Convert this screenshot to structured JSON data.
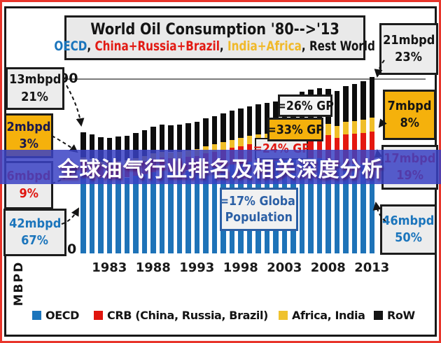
{
  "title_box": {
    "line1": "World Oil Consumption '80-->'13",
    "subtitle_segments": [
      {
        "text": "OECD",
        "color": "#1b75bc"
      },
      {
        "text": ", ",
        "color": "#141414"
      },
      {
        "text": "China+Russia+Brazil",
        "color": "#e21b14"
      },
      {
        "text": ", ",
        "color": "#141414"
      },
      {
        "text": "India+Africa",
        "color": "#f0b92a"
      },
      {
        "text": ", Rest World",
        "color": "#141414"
      }
    ]
  },
  "overlay_banner": {
    "text": "全球油气行业排名及相关深度分析",
    "bg": "rgba(58,66,196,0.85)",
    "text_color": "#ffffff"
  },
  "axis": {
    "y_top_label": "90",
    "y_zero_label": "0",
    "y_unit": "MBPD",
    "x_ticks": [
      "1983",
      "1988",
      "1993",
      "1998",
      "2003",
      "2008",
      "2013"
    ]
  },
  "callouts": {
    "left": [
      {
        "value": "13mbpd",
        "pct": "21%",
        "text_color": "#141414",
        "bg": "#ececec"
      },
      {
        "value": "2mbpd",
        "pct": "3%",
        "text_color": "#18184f",
        "bg": "#f5b10c"
      },
      {
        "value": "6mbpd",
        "pct": "9%",
        "text_color": "#e0150e",
        "bg": "#ececec"
      },
      {
        "value": "42mbpd",
        "pct": "67%",
        "text_color": "#1b75bc",
        "bg": "#ececec"
      }
    ],
    "right": [
      {
        "value": "21mbpd",
        "pct": "23%",
        "text_color": "#141414",
        "bg": "#ececec"
      },
      {
        "value": "7mbpd",
        "pct": "8%",
        "text_color": "#141414",
        "bg": "#f5b10c"
      },
      {
        "value": "17mbpd",
        "pct": "19%",
        "text_color": "#e0150e",
        "bg": "#ececec"
      },
      {
        "value": "46mbpd",
        "pct": "50%",
        "text_color": "#1b75bc",
        "bg": "#ececec"
      }
    ],
    "middle": [
      {
        "text": "=26% GP",
        "text_color": "#141414",
        "bg": "#f4f4f4"
      },
      {
        "text": "=33% GP",
        "text_color": "#141414",
        "bg": "#f5b10c"
      },
      {
        "text": "=24% GP",
        "text_color": "#e0150e",
        "bg": "#efefef"
      },
      {
        "line1": "=17% Global",
        "line2": "Population",
        "text_color": "#2b5fa5",
        "bg": "#f1f1f1",
        "border_color": "#2b5fa5"
      }
    ]
  },
  "legend": {
    "items": [
      {
        "label": "OECD",
        "color": "#1b75bc"
      },
      {
        "label": "CRB (China, Russia, Brazil)",
        "color": "#e0150e"
      },
      {
        "label": "Africa, India",
        "color": "#efc22e"
      },
      {
        "label": "RoW",
        "color": "#141414"
      }
    ]
  },
  "chart_data": {
    "type": "bar",
    "stacked": true,
    "title": "World Oil Consumption '80-->'13",
    "xlabel": "",
    "ylabel": "MBPD",
    "ylim": [
      0,
      95
    ],
    "y_gridline": 90,
    "legend_position": "bottom",
    "categories": [
      1980,
      1981,
      1982,
      1983,
      1984,
      1985,
      1986,
      1987,
      1988,
      1989,
      1990,
      1991,
      1992,
      1993,
      1994,
      1995,
      1996,
      1997,
      1998,
      1999,
      2000,
      2001,
      2002,
      2003,
      2004,
      2005,
      2006,
      2007,
      2008,
      2009,
      2010,
      2011,
      2012,
      2013
    ],
    "series": [
      {
        "name": "OECD",
        "color": "#1e73b8",
        "values": [
          41.5,
          40.5,
          39.2,
          38.6,
          38.9,
          39.2,
          40.2,
          41.0,
          42.0,
          42.5,
          42.1,
          42.2,
          42.8,
          43.0,
          44.0,
          44.6,
          45.3,
          46.0,
          46.4,
          47.2,
          47.5,
          47.6,
          47.7,
          48.2,
          49.0,
          49.4,
          49.3,
          49.1,
          47.6,
          45.8,
          46.6,
          46.1,
          45.9,
          46.0
        ]
      },
      {
        "name": "CRB (China, Russia, Brazil)",
        "color": "#e4180f",
        "values": [
          6.0,
          6.0,
          6.0,
          6.1,
          6.2,
          6.3,
          6.4,
          6.6,
          6.8,
          7.0,
          7.0,
          7.0,
          7.1,
          7.3,
          7.6,
          7.9,
          8.2,
          8.6,
          8.8,
          9.1,
          9.4,
          9.6,
          9.9,
          10.5,
          11.4,
          11.9,
          12.4,
          13.0,
          13.5,
          13.9,
          14.9,
          15.6,
          16.3,
          17.0
        ]
      },
      {
        "name": "Africa, India",
        "color": "#f0be28",
        "values": [
          2.0,
          2.1,
          2.2,
          2.3,
          2.4,
          2.5,
          2.6,
          2.7,
          2.9,
          3.0,
          3.1,
          3.2,
          3.3,
          3.5,
          3.6,
          3.8,
          4.0,
          4.1,
          4.3,
          4.4,
          4.6,
          4.7,
          4.8,
          4.9,
          5.1,
          5.3,
          5.5,
          5.7,
          5.9,
          6.1,
          6.4,
          6.6,
          6.8,
          7.0
        ]
      },
      {
        "name": "RoW",
        "color": "#0d0d0d",
        "values": [
          13.0,
          12.8,
          12.6,
          12.5,
          12.7,
          12.9,
          13.1,
          13.3,
          13.6,
          13.9,
          14.0,
          14.1,
          14.2,
          14.3,
          14.5,
          14.7,
          14.9,
          15.1,
          15.2,
          15.4,
          15.6,
          15.8,
          16.0,
          16.3,
          16.7,
          17.0,
          17.3,
          17.6,
          17.8,
          18.0,
          18.6,
          19.1,
          20.0,
          21.0
        ]
      }
    ],
    "annotations": [
      "=26% GP",
      "=33% GP",
      "=24% GP",
      "=17% Global Population",
      "1980: OECD 42mbpd 67%, CRB 6mbpd 9%, India+Africa 2mbpd 3%, RoW 13mbpd 21%",
      "2013: OECD 46mbpd 50%, CRB 17mbpd 19%, Africa+India 7mbpd 8%, RoW 21mbpd 23%"
    ]
  }
}
